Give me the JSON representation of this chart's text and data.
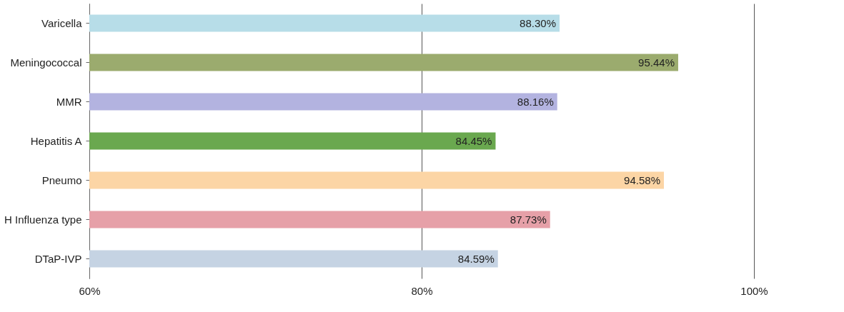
{
  "chart_data": {
    "type": "bar",
    "orientation": "horizontal",
    "categories": [
      "Varicella",
      "Meningococcal",
      "MMR",
      "Hepatitis A",
      "Pneumo",
      "H Influenza type",
      "DTaP-IVP"
    ],
    "values": [
      88.3,
      95.44,
      88.16,
      84.45,
      94.58,
      87.73,
      84.59
    ],
    "colors": [
      "#b7dde8",
      "#9bab6e",
      "#b3b3e0",
      "#6aa84f",
      "#fcd5a5",
      "#e6a0a8",
      "#c5d3e3"
    ],
    "value_labels": [
      "88.30%",
      "95.44%",
      "88.16%",
      "84.45%",
      "94.58%",
      "87.73%",
      "84.59%"
    ],
    "xlim": [
      60,
      100
    ],
    "xticks": [
      {
        "value": 60,
        "label": "60%"
      },
      {
        "value": 80,
        "label": "80%"
      },
      {
        "value": 100,
        "label": "100%"
      }
    ],
    "grid": "x",
    "legend": false
  }
}
